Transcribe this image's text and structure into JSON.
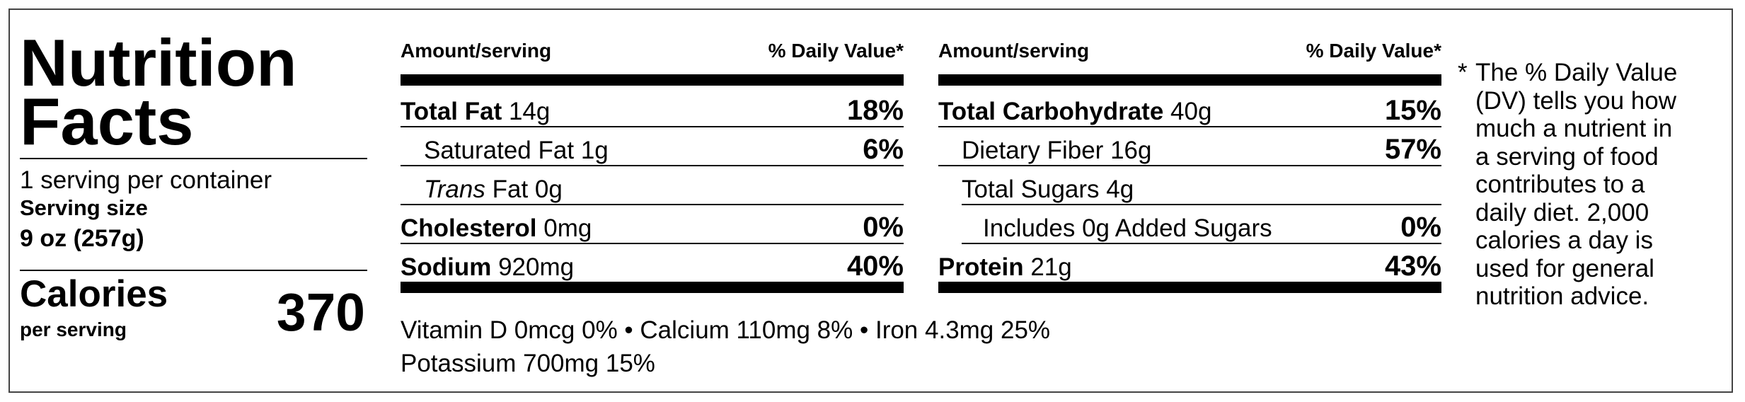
{
  "header": {
    "title_lines": [
      "Nutrition",
      "Facts"
    ],
    "servings": "1 serving per container",
    "serving_size_label": "Serving size",
    "serving_size": "9 oz (257g)",
    "calories_label": "Calories",
    "calories_sub": "per serving",
    "calories": "370"
  },
  "tables": [
    {
      "col_amount": "Amount/serving",
      "col_dv": "% Daily Value*",
      "rows": [
        {
          "name": "Total Fat",
          "amount": "14g",
          "dv": "18%"
        },
        {
          "name": "Saturated Fat",
          "amount": "1g",
          "dv": "6%"
        },
        {
          "italic": "Trans",
          "name": "Fat",
          "amount": "0g"
        },
        {
          "name": "Cholesterol",
          "amount": "0mg",
          "dv": "0%"
        },
        {
          "name": "Sodium",
          "amount": "920mg",
          "dv": "40%"
        }
      ]
    },
    {
      "col_amount": "Amount/serving",
      "col_dv": "% Daily Value*",
      "rows": [
        {
          "name": "Total Carbohydrate",
          "amount": "40g",
          "dv": "15%"
        },
        {
          "name": "Dietary Fiber",
          "amount": "16g",
          "dv": "57%"
        },
        {
          "name": "Total Sugars",
          "amount": "4g"
        },
        {
          "name": "Includes 0g Added Sugars",
          "dv": "0%"
        },
        {
          "name": "Protein",
          "amount": "21g",
          "dv": "43%"
        }
      ]
    }
  ],
  "vitamins": [
    "Vitamin D 0mcg 0% • Calcium 110mg 8% • Iron 4.3mg 25%",
    "Potassium 700mg 15%"
  ],
  "footnote": {
    "marker": "*",
    "lines": [
      "The % Daily Value",
      "(DV) tells you how",
      "much a nutrient in",
      "a serving of food",
      "contributes to a",
      "daily diet. 2,000",
      "calories a day is",
      "used for general",
      "nutrition advice."
    ]
  }
}
